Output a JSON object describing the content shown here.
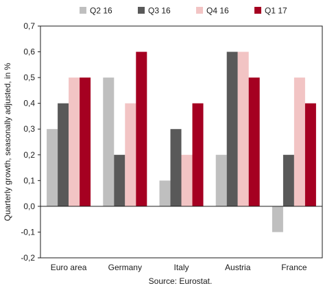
{
  "chart_data": {
    "type": "bar",
    "categories": [
      "Euro area",
      "Germany",
      "Italy",
      "Austria",
      "France"
    ],
    "series": [
      {
        "name": "Q2 16",
        "color": "#bfbfbf",
        "values": [
          0.3,
          0.5,
          0.1,
          0.2,
          -0.1
        ]
      },
      {
        "name": "Q3 16",
        "color": "#595959",
        "values": [
          0.4,
          0.2,
          0.3,
          0.6,
          0.2
        ]
      },
      {
        "name": "Q4 16",
        "color": "#f2c4c4",
        "values": [
          0.5,
          0.4,
          0.2,
          0.6,
          0.5
        ]
      },
      {
        "name": "Q1 17",
        "color": "#a50021",
        "values": [
          0.5,
          0.6,
          0.4,
          0.5,
          0.4
        ]
      }
    ],
    "ylabel": "Quarterly growth, seasonally adjusted, in %",
    "ylim": [
      -0.2,
      0.7
    ],
    "yticks": [
      "-0,2",
      "-0,1",
      "0,0",
      "0,1",
      "0,2",
      "0,3",
      "0,4",
      "0,5",
      "0,6",
      "0,7"
    ],
    "legend_position": "top",
    "grid": false,
    "source": "Source: Eurostat."
  }
}
